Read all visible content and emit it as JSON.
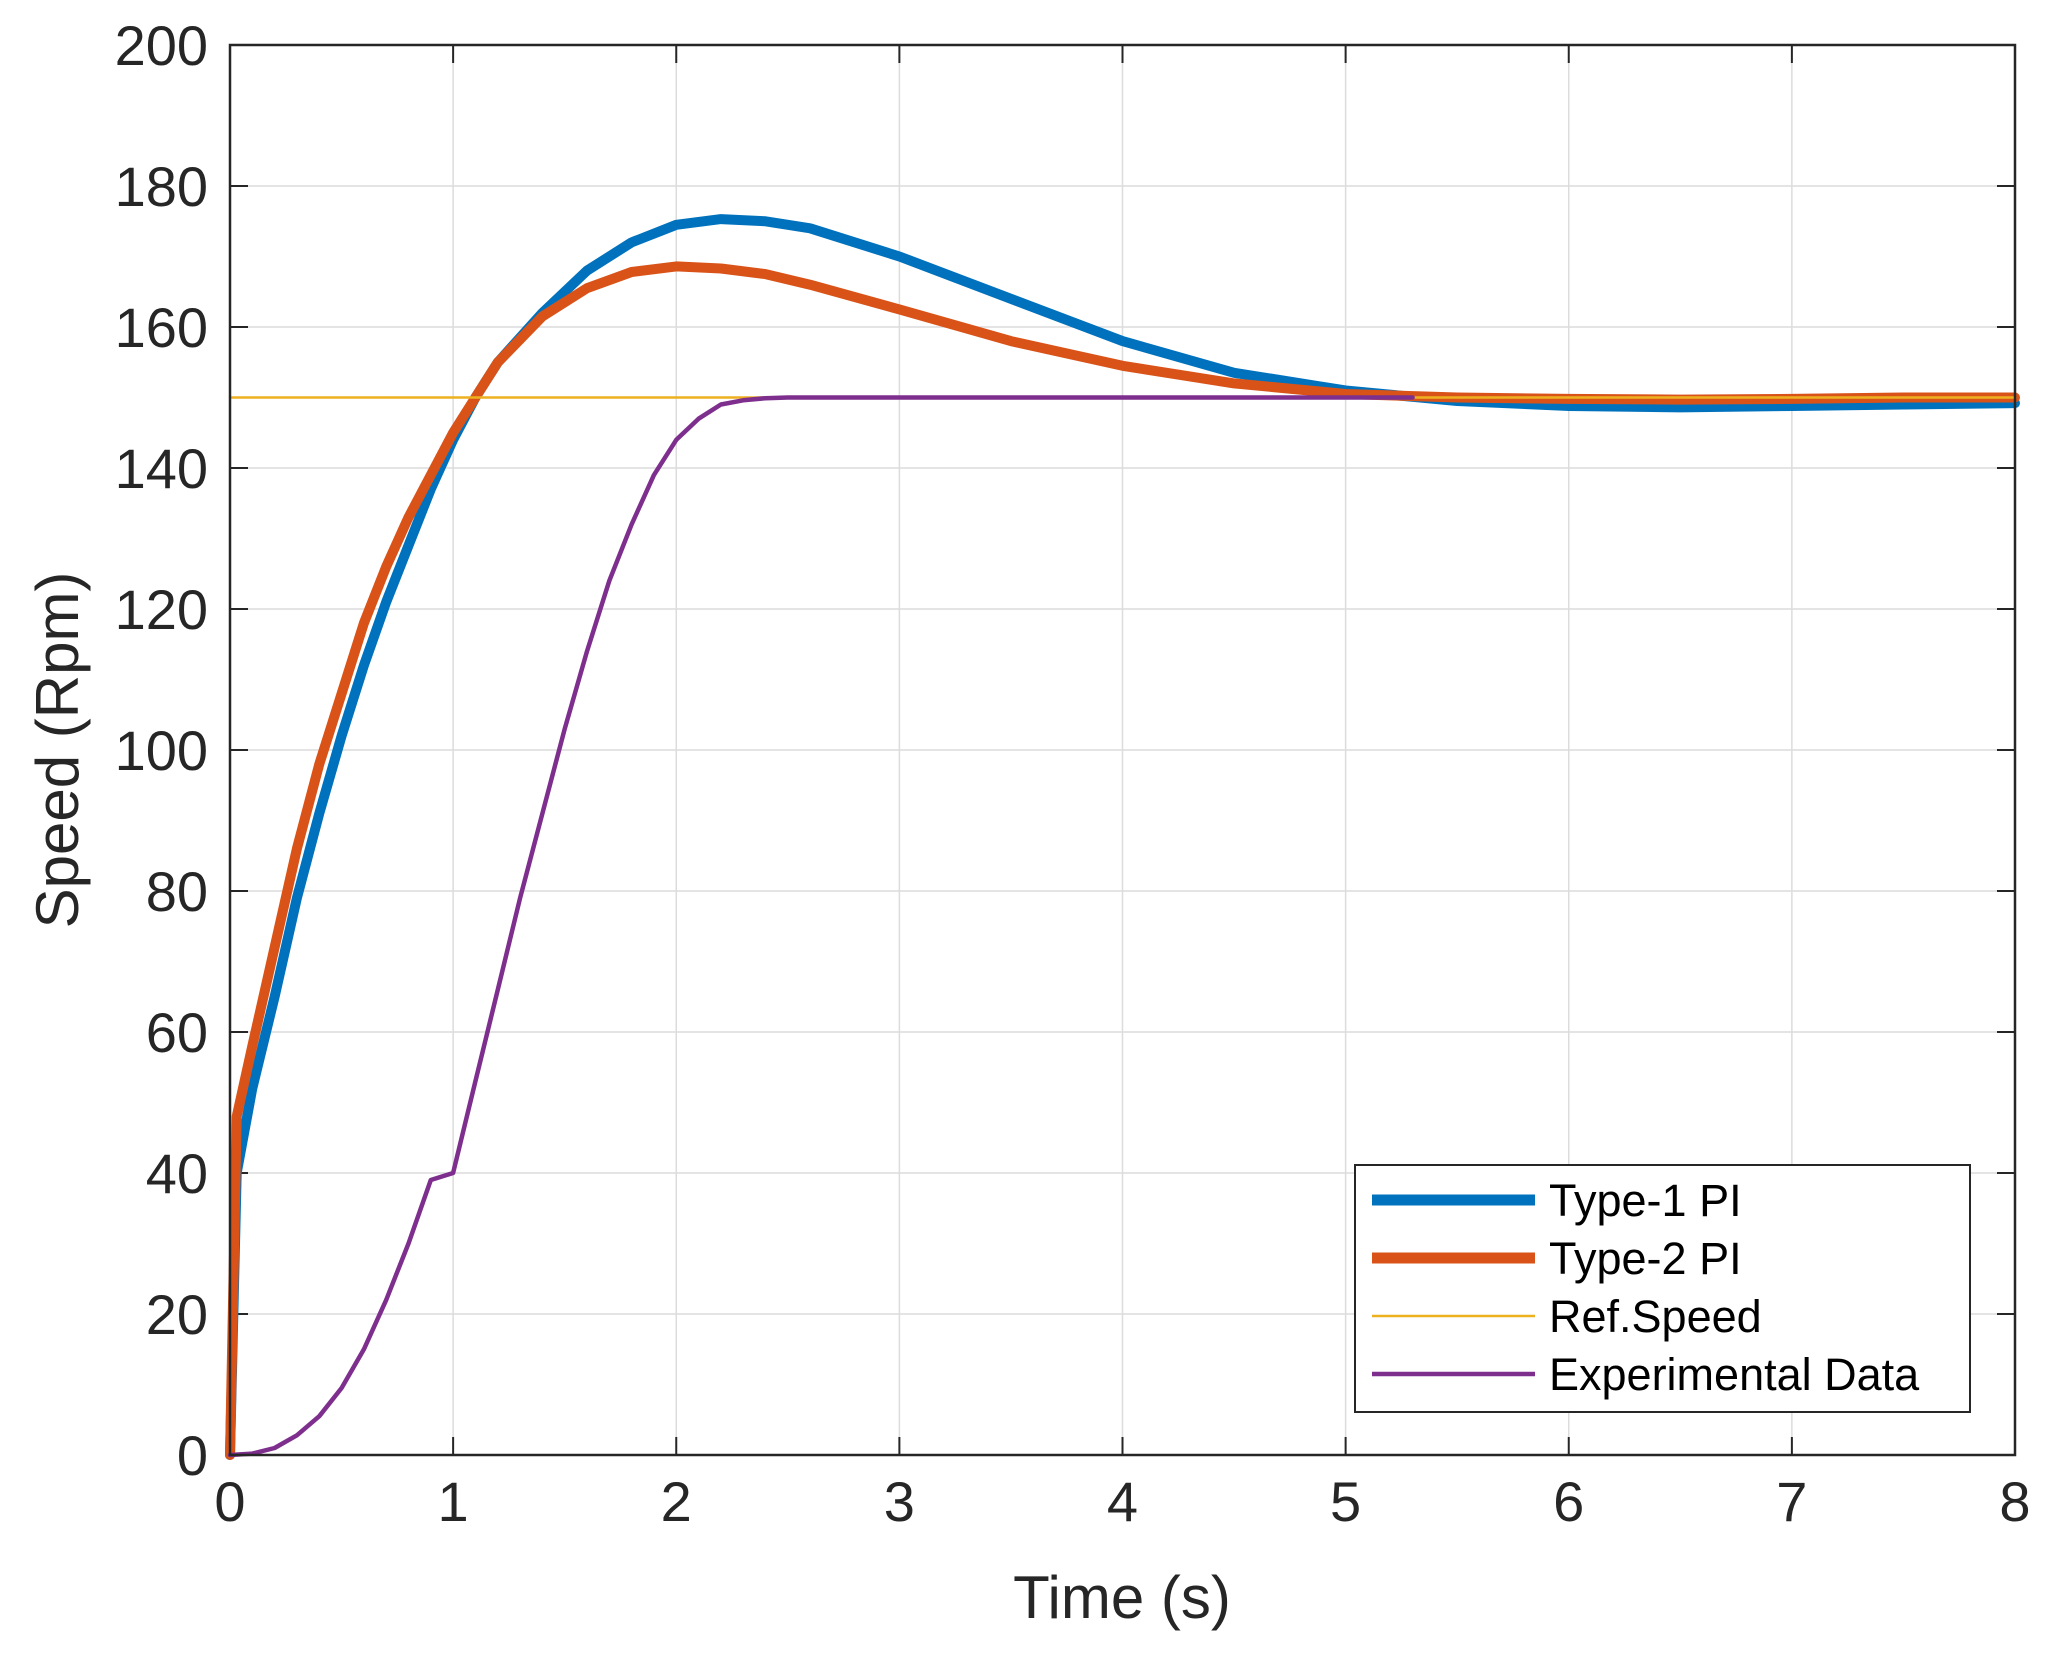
{
  "chart_data": {
    "type": "line",
    "title": "",
    "xlabel": "Time (s)",
    "ylabel": "Speed (Rpm)",
    "xlim": [
      0,
      8
    ],
    "ylim": [
      0,
      200
    ],
    "xticks": [
      0,
      1,
      2,
      3,
      4,
      5,
      6,
      7,
      8
    ],
    "yticks": [
      0,
      20,
      40,
      60,
      80,
      100,
      120,
      140,
      160,
      180,
      200
    ],
    "xtick_labels": [
      "0",
      "1",
      "2",
      "3",
      "4",
      "5",
      "6",
      "7",
      "8"
    ],
    "ytick_labels": [
      "0",
      "20",
      "40",
      "60",
      "80",
      "100",
      "120",
      "140",
      "160",
      "180",
      "200"
    ],
    "grid": true,
    "legend_position": "bottom-right",
    "series": [
      {
        "name": "Type-1 PI",
        "color": "#0072BD",
        "x": [
          0,
          0.03,
          0.1,
          0.2,
          0.3,
          0.4,
          0.5,
          0.6,
          0.7,
          0.8,
          0.9,
          1.0,
          1.1,
          1.2,
          1.4,
          1.6,
          1.8,
          2.0,
          2.2,
          2.4,
          2.6,
          3.0,
          3.5,
          4.0,
          4.5,
          5.0,
          5.5,
          6.0,
          6.5,
          7.0,
          7.5,
          8.0
        ],
        "y": [
          0,
          40,
          52,
          65,
          79,
          91,
          102,
          112,
          121,
          129,
          137,
          144,
          150,
          155,
          162,
          168,
          172,
          174.5,
          175.3,
          175,
          174,
          170,
          164,
          158,
          153.5,
          151,
          149.5,
          148.8,
          148.6,
          148.8,
          149,
          149.2
        ]
      },
      {
        "name": "Type-2 PI",
        "color": "#D95319",
        "x": [
          0,
          0.03,
          0.1,
          0.2,
          0.3,
          0.4,
          0.5,
          0.6,
          0.7,
          0.8,
          0.9,
          1.0,
          1.1,
          1.2,
          1.4,
          1.6,
          1.8,
          2.0,
          2.2,
          2.4,
          2.6,
          3.0,
          3.5,
          4.0,
          4.5,
          5.0,
          5.5,
          6.0,
          6.5,
          7.0,
          7.5,
          8.0
        ],
        "y": [
          0,
          48,
          58,
          72,
          86,
          98,
          108,
          118,
          126,
          133,
          139,
          145,
          150,
          155,
          161.5,
          165.5,
          167.8,
          168.6,
          168.3,
          167.5,
          166,
          162.5,
          158,
          154.5,
          152,
          150.5,
          150,
          149.8,
          149.7,
          149.8,
          150,
          150
        ]
      },
      {
        "name": "Ref.Speed",
        "color": "#EDB120",
        "x": [
          0,
          8
        ],
        "y": [
          150,
          150
        ]
      },
      {
        "name": "Experimental Data",
        "color": "#7E2F8E",
        "x": [
          0,
          0.1,
          0.2,
          0.3,
          0.4,
          0.5,
          0.6,
          0.7,
          0.8,
          0.9,
          1.0,
          1.1,
          1.2,
          1.3,
          1.4,
          1.5,
          1.6,
          1.7,
          1.8,
          1.9,
          2.0,
          2.1,
          2.2,
          2.3,
          2.4,
          2.5,
          2.6,
          2.7,
          3.0,
          4.0,
          5.0,
          5.3
        ],
        "y": [
          0,
          0.2,
          1.0,
          2.8,
          5.5,
          9.5,
          15,
          22,
          30,
          39,
          40,
          53,
          66,
          79,
          91,
          103,
          114,
          124,
          132,
          139,
          144,
          147,
          149,
          149.6,
          149.9,
          150,
          150,
          150,
          150,
          150,
          150,
          150
        ]
      }
    ]
  }
}
